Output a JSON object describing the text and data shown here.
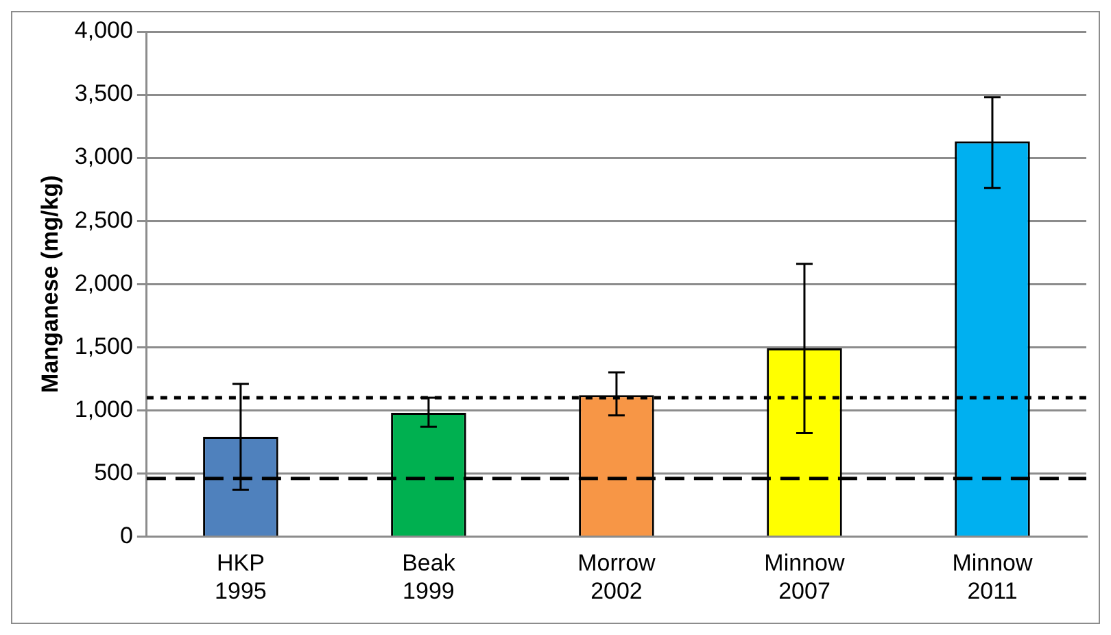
{
  "chart_data": {
    "type": "bar",
    "ylabel": "Manganese (mg/kg)",
    "categories": [
      "HKP 1995",
      "Beak 1999",
      "Morrow 2002",
      "Minnow 2007",
      "Minnow 2011"
    ],
    "values": [
      790,
      980,
      1120,
      1490,
      3130
    ],
    "colors": [
      "#4f81bd",
      "#00b050",
      "#f79646",
      "#ffff00",
      "#00b0f0"
    ],
    "errors": [
      [
        370,
        1210
      ],
      [
        870,
        1100
      ],
      [
        960,
        1300
      ],
      [
        820,
        2160
      ],
      [
        2760,
        3480
      ]
    ],
    "ylim": [
      0,
      4000
    ],
    "yticks": [
      {
        "value": 0,
        "label": "0"
      },
      {
        "value": 500,
        "label": "500"
      },
      {
        "value": 1000,
        "label": "1,000"
      },
      {
        "value": 1500,
        "label": "1,500"
      },
      {
        "value": 2000,
        "label": "2,000"
      },
      {
        "value": 2500,
        "label": "2,500"
      },
      {
        "value": 3000,
        "label": "3,000"
      },
      {
        "value": 3500,
        "label": "3,500"
      },
      {
        "value": 4000,
        "label": "4,000"
      }
    ],
    "grid": "y",
    "ref_lines": [
      {
        "axis": "y",
        "value": 1100,
        "color": "#000000",
        "line_style": "dotted"
      },
      {
        "axis": "y",
        "value": 460,
        "color": "#000000",
        "line_style": "dashed"
      }
    ]
  }
}
